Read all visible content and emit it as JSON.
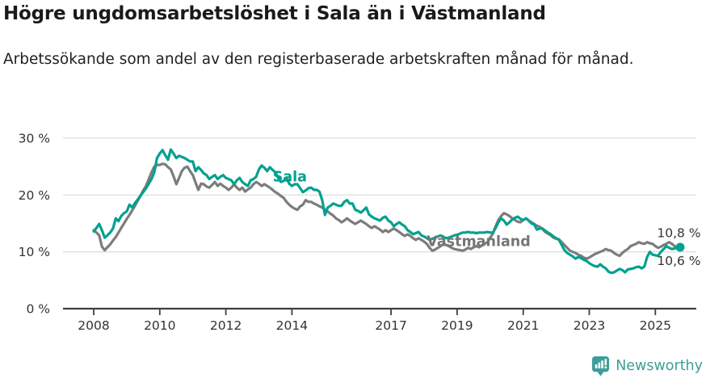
{
  "chart_data": {
    "type": "line",
    "title": "Högre ungdomsarbetslöshet i Sala än i Västmanland",
    "subtitle": "Arbetssökande som andel av den registerbaserade arbetskraften månad för månad.",
    "unit": "%",
    "grid": "horizontal",
    "legend_position": "inline-labels",
    "x_start_year": 2008,
    "x_step_months": 1,
    "xlim": [
      2007.1,
      2026.3
    ],
    "ylim": [
      0,
      31.5
    ],
    "y_ticks": [
      {
        "value": 0,
        "label": "0 %"
      },
      {
        "value": 10,
        "label": "10 %"
      },
      {
        "value": 20,
        "label": "20 %"
      },
      {
        "value": 30,
        "label": "30 %"
      }
    ],
    "x_ticks": [
      {
        "value": 2008,
        "label": "2008"
      },
      {
        "value": 2010,
        "label": "2010"
      },
      {
        "value": 2012,
        "label": "2012"
      },
      {
        "value": 2014,
        "label": "2014"
      },
      {
        "value": 2017,
        "label": "2017"
      },
      {
        "value": 2019,
        "label": "2019"
      },
      {
        "value": 2021,
        "label": "2021"
      },
      {
        "value": 2023,
        "label": "2023"
      },
      {
        "value": 2025,
        "label": "2025"
      }
    ],
    "series": [
      {
        "key": "sala",
        "name": "Sala",
        "color": "#00a18f",
        "end_dot": true,
        "label_anchor": {
          "year": 2013.42,
          "value": 22.4
        },
        "end_label": {
          "text": "10,8 %",
          "year": 2025.05,
          "value": 12.55
        },
        "latest_value": 10.8,
        "values": [
          13.6,
          14.2,
          14.9,
          13.8,
          12.5,
          12.9,
          13.4,
          14.1,
          15.9,
          15.4,
          16.3,
          16.8,
          17.1,
          18.3,
          17.8,
          18.6,
          19.2,
          19.9,
          20.5,
          21.2,
          22.0,
          22.8,
          24.0,
          26.5,
          27.3,
          27.9,
          27.0,
          26.2,
          28.0,
          27.3,
          26.5,
          26.9,
          26.7,
          26.5,
          26.2,
          25.9,
          25.9,
          24.2,
          24.9,
          24.4,
          23.8,
          23.5,
          22.8,
          23.2,
          23.5,
          22.8,
          23.2,
          23.5,
          23.0,
          22.8,
          22.6,
          21.9,
          22.6,
          23.0,
          22.3,
          21.9,
          21.6,
          22.6,
          22.8,
          23.2,
          24.5,
          25.2,
          24.8,
          24.2,
          24.9,
          24.4,
          24.0,
          23.0,
          22.3,
          22.5,
          23.0,
          22.0,
          21.6,
          21.9,
          21.9,
          21.2,
          20.5,
          20.8,
          21.2,
          21.3,
          20.9,
          20.9,
          20.6,
          19.1,
          16.5,
          17.8,
          18.1,
          18.5,
          18.3,
          18.1,
          18.1,
          18.8,
          19.1,
          18.5,
          18.5,
          17.4,
          17.2,
          16.9,
          17.3,
          17.8,
          16.6,
          16.2,
          15.9,
          15.7,
          15.5,
          16.0,
          16.2,
          15.5,
          15.2,
          14.5,
          14.9,
          15.2,
          14.8,
          14.5,
          13.8,
          13.5,
          13.1,
          13.3,
          13.5,
          12.9,
          12.7,
          12.4,
          12.1,
          12.3,
          12.5,
          12.7,
          12.9,
          12.6,
          12.4,
          12.5,
          12.7,
          12.9,
          13.0,
          13.2,
          13.4,
          13.4,
          13.5,
          13.4,
          13.4,
          13.3,
          13.4,
          13.4,
          13.4,
          13.5,
          13.4,
          13.4,
          14.2,
          15.2,
          15.9,
          15.5,
          14.8,
          15.2,
          15.7,
          16.0,
          16.2,
          15.8,
          15.6,
          15.9,
          15.5,
          15.0,
          14.8,
          13.9,
          14.1,
          14.1,
          13.7,
          13.4,
          13.1,
          12.7,
          12.4,
          12.1,
          11.2,
          10.3,
          9.8,
          9.5,
          9.2,
          8.8,
          9.1,
          8.9,
          8.6,
          8.4,
          8.0,
          7.7,
          7.5,
          7.4,
          7.8,
          7.4,
          7.1,
          6.5,
          6.3,
          6.4,
          6.7,
          7.0,
          6.8,
          6.4,
          6.9,
          7.0,
          7.1,
          7.3,
          7.4,
          7.1,
          7.4,
          9.1,
          10.0,
          9.5,
          9.4,
          9.3,
          10.0,
          10.5,
          11.0,
          10.7,
          10.5,
          10.6,
          10.7,
          10.8
        ]
      },
      {
        "key": "vastmanland",
        "name": "Västmanland",
        "color": "#7c7c7c",
        "end_dot": false,
        "label_anchor": {
          "year": 2018.08,
          "value": 11.05
        },
        "end_label": {
          "text": "10,6 %",
          "year": 2025.05,
          "value": 7.68
        },
        "latest_value": 10.6,
        "values": [
          13.8,
          13.4,
          12.9,
          10.9,
          10.3,
          10.8,
          11.3,
          12.0,
          12.6,
          13.4,
          14.2,
          15.0,
          15.8,
          16.5,
          17.3,
          18.1,
          19.0,
          19.8,
          20.8,
          21.6,
          22.8,
          24.0,
          25.0,
          25.3,
          25.3,
          25.5,
          25.4,
          24.9,
          24.5,
          23.3,
          21.9,
          23.0,
          24.2,
          24.8,
          25.0,
          24.2,
          23.5,
          22.2,
          20.9,
          22.0,
          21.9,
          21.5,
          21.3,
          21.8,
          22.3,
          21.6,
          22.0,
          21.6,
          21.3,
          20.9,
          21.3,
          21.9,
          21.3,
          20.9,
          21.3,
          20.6,
          21.0,
          21.3,
          21.9,
          22.3,
          22.0,
          21.6,
          21.9,
          21.6,
          21.3,
          20.9,
          20.5,
          20.2,
          19.8,
          19.5,
          18.8,
          18.3,
          17.9,
          17.6,
          17.4,
          18.0,
          18.3,
          19.1,
          18.8,
          18.8,
          18.5,
          18.3,
          18.0,
          17.8,
          17.4,
          17.1,
          16.7,
          16.4,
          15.9,
          15.6,
          15.2,
          15.5,
          15.9,
          15.5,
          15.2,
          14.9,
          15.2,
          15.5,
          15.2,
          14.9,
          14.5,
          14.2,
          14.5,
          14.2,
          13.9,
          13.5,
          13.8,
          13.5,
          13.8,
          14.1,
          13.8,
          13.5,
          13.1,
          12.8,
          13.1,
          12.8,
          12.4,
          12.1,
          12.4,
          12.1,
          11.8,
          11.4,
          10.7,
          10.2,
          10.4,
          10.7,
          11.0,
          11.4,
          11.2,
          11.0,
          10.7,
          10.5,
          10.4,
          10.3,
          10.2,
          10.4,
          10.7,
          10.5,
          10.8,
          11.0,
          10.8,
          11.1,
          11.4,
          11.7,
          12.5,
          13.2,
          14.5,
          15.6,
          16.3,
          16.8,
          16.6,
          16.3,
          15.9,
          15.6,
          15.3,
          15.2,
          15.6,
          15.9,
          15.5,
          15.2,
          14.9,
          14.6,
          14.4,
          14.0,
          13.5,
          13.2,
          12.9,
          12.5,
          12.3,
          12.2,
          11.7,
          11.2,
          10.7,
          10.2,
          10.0,
          9.8,
          9.5,
          9.3,
          9.0,
          8.8,
          9.0,
          9.3,
          9.6,
          9.8,
          10.0,
          10.2,
          10.5,
          10.3,
          10.2,
          9.8,
          9.5,
          9.3,
          9.8,
          10.2,
          10.5,
          11.0,
          11.2,
          11.4,
          11.7,
          11.5,
          11.4,
          11.7,
          11.5,
          11.4,
          11.0,
          10.7,
          10.9,
          11.2,
          11.4,
          11.7,
          11.4,
          11.0,
          10.7,
          10.6
        ]
      }
    ]
  },
  "style": {
    "axis_color": "#3f3f3f",
    "grid_color": "#dedede",
    "tick_text_color": "#333333",
    "end_label_color": "#333333"
  },
  "footer": {
    "brand": "Newsworthy",
    "brand_color": "#3d9e99"
  }
}
